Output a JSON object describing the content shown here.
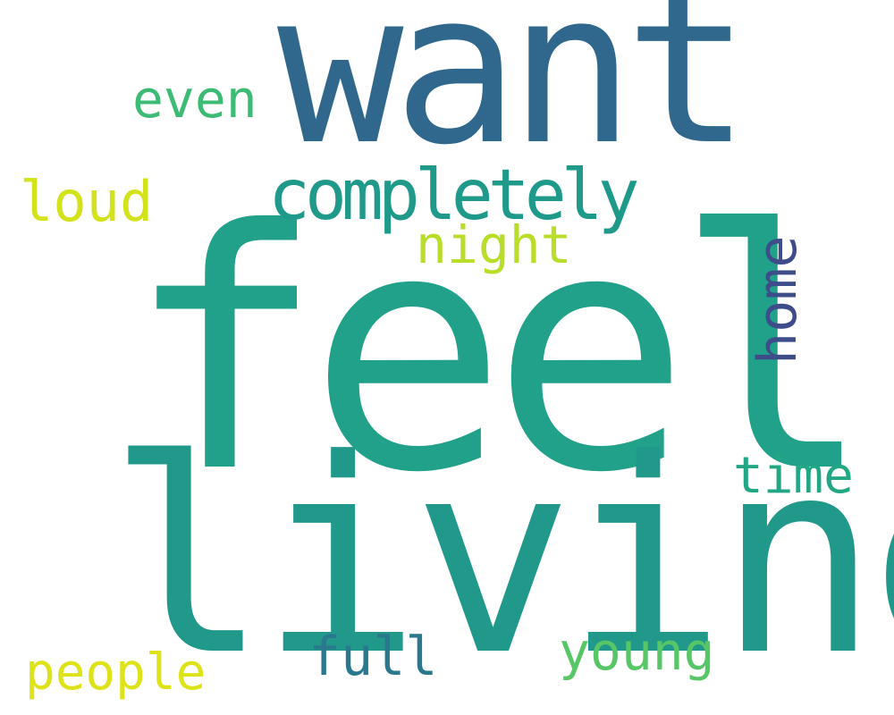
{
  "words": [
    {
      "text": "feel",
      "color": "#21a08a"
    },
    {
      "text": "living",
      "color": "#21998a"
    },
    {
      "text": "want",
      "color": "#30688d"
    },
    {
      "text": "completely",
      "color": "#1f9a8a"
    },
    {
      "text": "even",
      "color": "#3cbb75"
    },
    {
      "text": "loud",
      "color": "#d2e21b"
    },
    {
      "text": "night",
      "color": "#b8de29"
    },
    {
      "text": "home",
      "color": "#3e4c8a"
    },
    {
      "text": "time",
      "color": "#22a785"
    },
    {
      "text": "people",
      "color": "#dde318"
    },
    {
      "text": "full",
      "color": "#2a788e"
    },
    {
      "text": "young",
      "color": "#56c667"
    }
  ]
}
